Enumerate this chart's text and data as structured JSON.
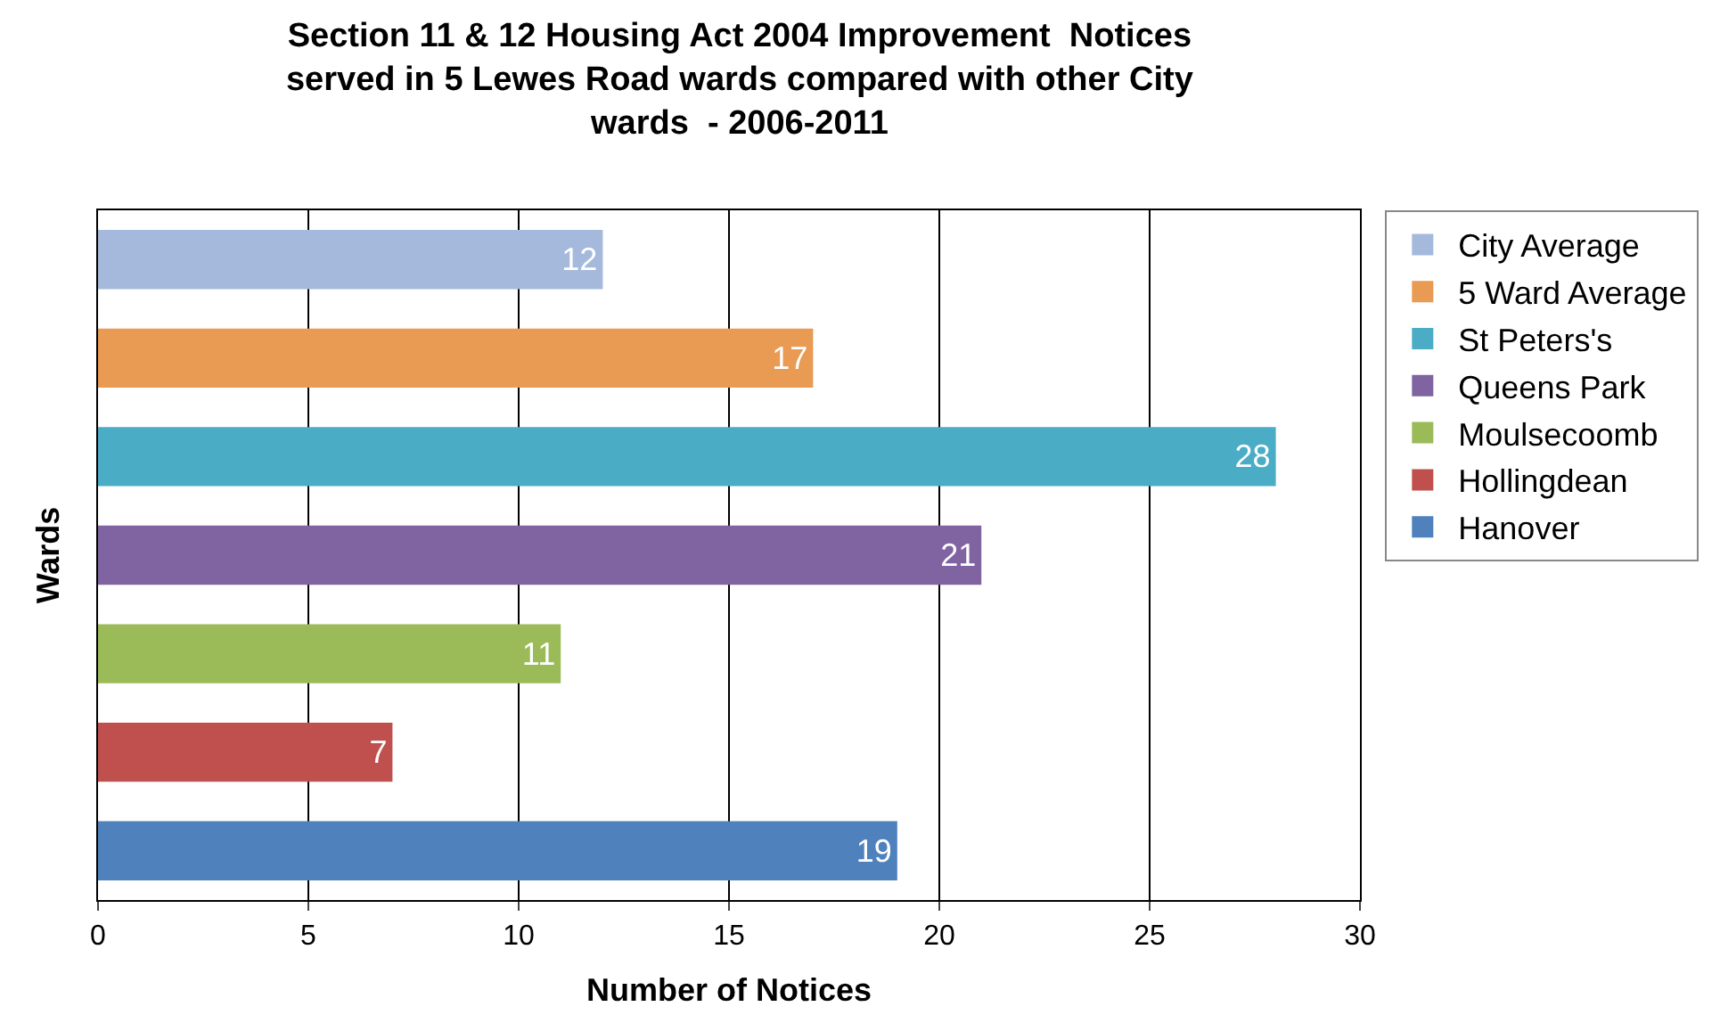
{
  "chart_data": {
    "type": "bar",
    "orientation": "horizontal",
    "title": "Section 11 & 12 Housing Act 2004 Improvement  Notices\nserved in 5 Lewes Road wards compared with other City\nwards  - 2006-2011",
    "xlabel": "Number of Notices",
    "ylabel": "Wards",
    "categories": [
      null,
      null,
      null,
      null,
      null,
      null,
      null
    ],
    "series": [
      {
        "name": "City Average",
        "color": "#a5b9dc",
        "values": [
          12,
          null,
          null,
          null,
          null,
          null,
          null
        ]
      },
      {
        "name": "5 Ward Average",
        "color": "#e99a53",
        "values": [
          null,
          17,
          null,
          null,
          null,
          null,
          null
        ]
      },
      {
        "name": "St Peters's",
        "color": "#4bacc6",
        "values": [
          null,
          null,
          28,
          null,
          null,
          null,
          null
        ]
      },
      {
        "name": "Queens Park",
        "color": "#8064a2",
        "values": [
          null,
          null,
          null,
          21,
          null,
          null,
          null
        ]
      },
      {
        "name": "Moulsecoomb",
        "color": "#9bbb59",
        "values": [
          null,
          null,
          null,
          null,
          11,
          null,
          null
        ]
      },
      {
        "name": "Hollingdean",
        "color": "#c0504d",
        "values": [
          null,
          null,
          null,
          null,
          null,
          7,
          null
        ]
      },
      {
        "name": "Hanover",
        "color": "#4f81bd",
        "values": [
          null,
          null,
          null,
          null,
          null,
          null,
          19
        ]
      }
    ],
    "xlim": [
      0,
      30
    ],
    "xticks": [
      0,
      5,
      10,
      15,
      20,
      25,
      30
    ],
    "grid": "x",
    "legend": "right",
    "data_labels": true,
    "tick_labels": "x"
  }
}
